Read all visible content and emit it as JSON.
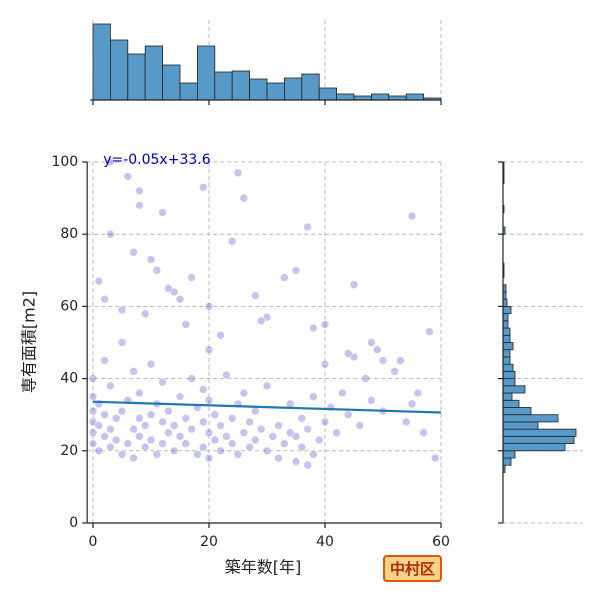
{
  "chart_data": [
    {
      "type": "scatter",
      "x": [
        0,
        0,
        0,
        0,
        0,
        0,
        1,
        1,
        1,
        2,
        2,
        2,
        3,
        3,
        3,
        4,
        4,
        5,
        5,
        5,
        6,
        6,
        7,
        7,
        7,
        8,
        8,
        8,
        9,
        9,
        10,
        10,
        10,
        11,
        11,
        12,
        12,
        12,
        13,
        13,
        14,
        14,
        15,
        15,
        16,
        16,
        17,
        17,
        18,
        18,
        19,
        19,
        19,
        20,
        20,
        20,
        21,
        21,
        22,
        22,
        23,
        23,
        24,
        24,
        25,
        25,
        26,
        26,
        27,
        27,
        28,
        28,
        29,
        30,
        30,
        31,
        32,
        32,
        33,
        34,
        34,
        35,
        35,
        36,
        36,
        37,
        37,
        38,
        38,
        39,
        40,
        40,
        41,
        42,
        43,
        44,
        45,
        46,
        47,
        48,
        50,
        52,
        54,
        55,
        57,
        58,
        59,
        56,
        53,
        49,
        2,
        3,
        6,
        7,
        8,
        9,
        11,
        12,
        14,
        16,
        19,
        20,
        22,
        25,
        28,
        30,
        33,
        37,
        45,
        48,
        50,
        55,
        1,
        5,
        10,
        15,
        20,
        24,
        29,
        35,
        40,
        44,
        3,
        13,
        26,
        38,
        17,
        8
      ],
      "y": [
        22,
        25,
        28,
        31,
        35,
        40,
        20,
        27,
        33,
        24,
        30,
        45,
        21,
        26,
        38,
        23,
        29,
        19,
        31,
        50,
        22,
        34,
        18,
        26,
        42,
        24,
        29,
        36,
        21,
        27,
        23,
        30,
        44,
        19,
        33,
        22,
        28,
        39,
        25,
        31,
        20,
        27,
        24,
        35,
        22,
        29,
        26,
        40,
        19,
        32,
        21,
        28,
        37,
        18,
        25,
        34,
        23,
        30,
        20,
        27,
        24,
        41,
        22,
        29,
        19,
        33,
        25,
        36,
        21,
        28,
        23,
        31,
        26,
        20,
        38,
        24,
        18,
        27,
        22,
        25,
        33,
        17,
        24,
        21,
        29,
        16,
        26,
        19,
        35,
        23,
        28,
        44,
        32,
        25,
        36,
        30,
        46,
        27,
        40,
        34,
        31,
        42,
        28,
        33,
        25,
        53,
        18,
        36,
        45,
        48,
        62,
        80,
        96,
        75,
        92,
        58,
        70,
        86,
        64,
        55,
        93,
        60,
        52,
        97,
        63,
        57,
        68,
        82,
        66,
        50,
        45,
        85,
        67,
        59,
        73,
        62,
        48,
        78,
        56,
        70,
        55,
        47,
        100,
        65,
        90,
        54,
        68,
        88
      ],
      "color": "#3a3ac8",
      "xlim": [
        -1,
        60
      ],
      "ylim": [
        0,
        100
      ],
      "xticks": [
        0,
        20,
        40,
        60
      ],
      "yticks": [
        0,
        20,
        40,
        60,
        80,
        100
      ],
      "xlabel": "築年数[年]",
      "ylabel": "専有面積[m2]",
      "grid": true,
      "fit": {
        "x": [
          0,
          60
        ],
        "y": [
          33.6,
          30.6
        ],
        "color": "#1f77b4",
        "label": "y=-0.05x+33.6",
        "label_color": "#0000c0"
      }
    },
    {
      "type": "histogram",
      "orientation": "vertical",
      "bins": [
        0,
        3,
        6,
        9,
        12,
        15,
        18,
        21,
        24,
        27,
        30,
        33,
        36,
        39,
        42,
        45,
        48,
        51,
        54,
        57,
        60
      ],
      "counts": [
        76,
        60,
        46,
        54,
        35,
        17,
        54,
        28,
        29,
        21,
        17,
        22,
        26,
        12,
        6,
        4,
        6,
        4,
        6,
        2
      ],
      "color": "#5799c7",
      "xlim": [
        -1,
        60
      ],
      "ylim": [
        0,
        80
      ],
      "xticks": [
        0,
        20,
        40,
        60
      ],
      "grid": true
    },
    {
      "type": "histogram",
      "orientation": "horizontal",
      "bins": [
        14,
        16,
        18,
        20,
        22,
        24,
        26,
        28,
        30,
        32,
        34,
        36,
        38,
        40,
        42,
        44,
        46,
        48,
        50,
        52,
        54,
        56,
        58,
        60,
        62,
        64,
        66,
        68,
        70,
        72,
        74,
        76,
        78,
        80,
        82,
        84,
        86,
        88,
        90,
        92,
        94,
        96,
        98,
        100
      ],
      "counts": [
        2,
        8,
        12,
        62,
        71,
        73,
        35,
        55,
        28,
        16,
        9,
        22,
        12,
        12,
        10,
        7,
        7,
        10,
        7,
        7,
        5,
        5,
        8,
        4,
        3,
        3,
        0,
        1,
        1,
        0,
        0,
        0,
        0,
        2,
        0,
        0,
        1,
        0,
        0,
        0,
        1,
        1,
        1
      ],
      "color": "#5799c7",
      "xlim": [
        0,
        80
      ],
      "ylim": [
        0,
        100
      ],
      "yticks": [
        0,
        20,
        40,
        60,
        80,
        100
      ],
      "grid": true
    }
  ],
  "badge": "中村区"
}
